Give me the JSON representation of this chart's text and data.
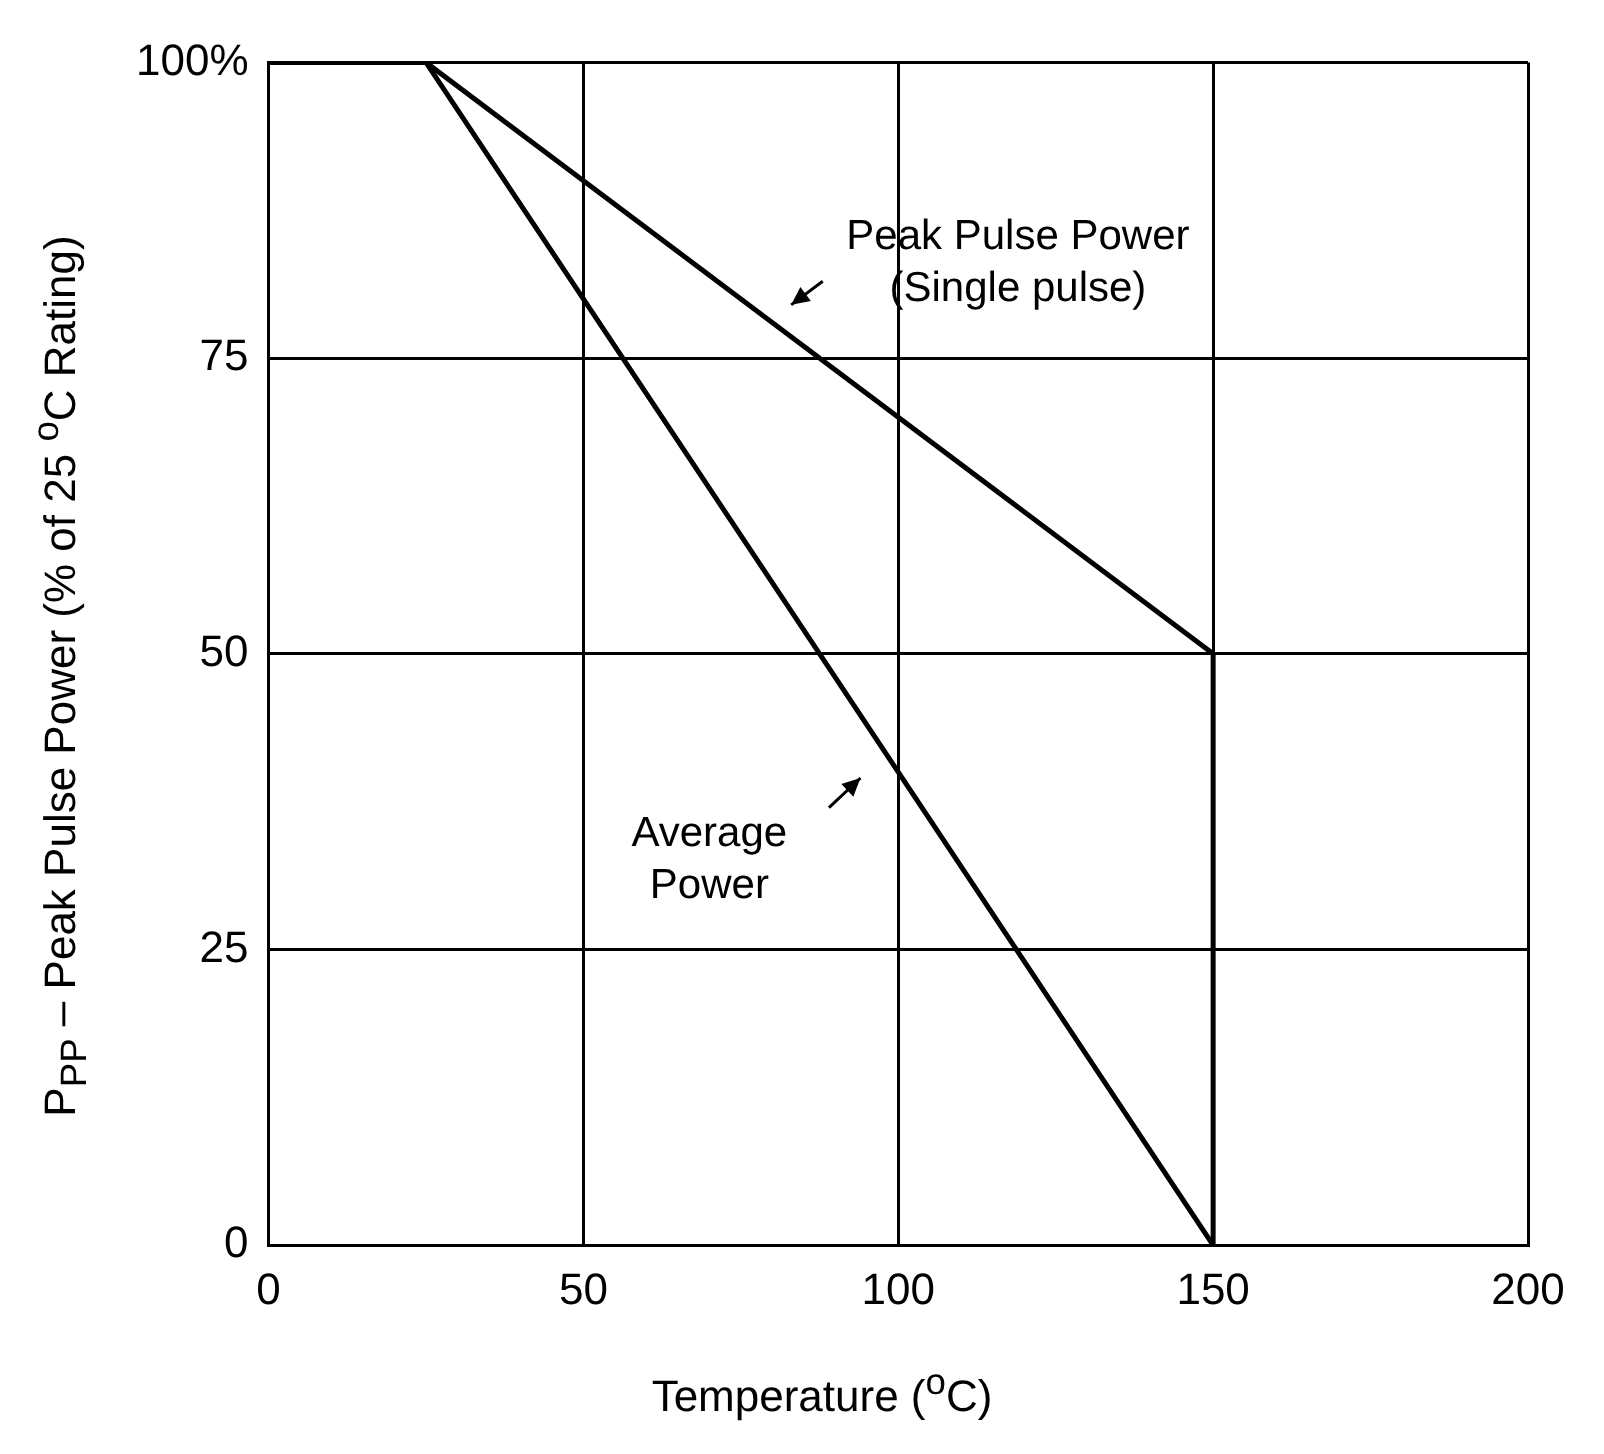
{
  "chart_data": {
    "type": "line",
    "xlabel": "Temperature ($^{o}$C)",
    "ylabel": "P$_{PP}$ – Peak Pulse Power (% of 25 $^{o}$C Rating)",
    "series": [
      {
        "color": "#000000",
        "x": [
          0,
          25,
          150,
          150
        ],
        "values": [
          100,
          100,
          50,
          0
        ]
      },
      {
        "color": "#000000",
        "x": [
          0,
          25,
          150
        ],
        "values": [
          100,
          100,
          0
        ]
      }
    ],
    "xlim": [
      0,
      200
    ],
    "xticks": [
      0,
      50,
      100,
      150,
      200
    ],
    "ylim": [
      0,
      100
    ],
    "yticks": [
      0,
      25,
      50,
      75,
      {
        "value": 100,
        "label": "100%"
      }
    ],
    "grid": true,
    "legend": false,
    "marker": "none",
    "line_style": "solid",
    "annotations": [
      "Peak Pulse Power\n(Single pulse)",
      "Average\nPower"
    ]
  }
}
